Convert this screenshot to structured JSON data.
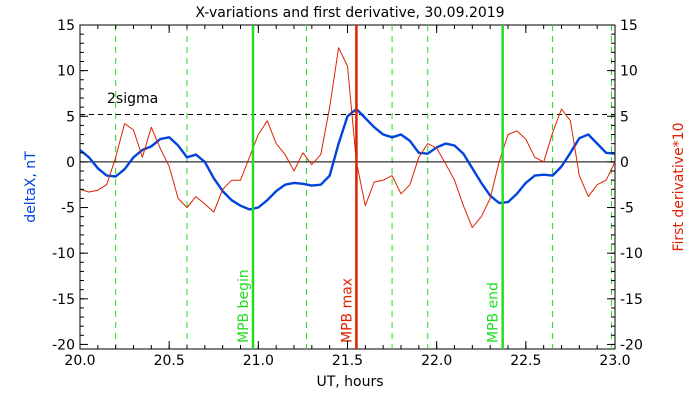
{
  "chart_data": {
    "type": "line",
    "title": "X-variations and first derivative, 30.09.2019",
    "xlabel": "UT, hours",
    "ylabel_left": "deltaX, nT",
    "ylabel_right": "First derivative*10",
    "xlim": [
      20.0,
      23.0
    ],
    "ylim": [
      -20.5,
      15
    ],
    "x_ticks": [
      "20.0",
      "20.5",
      "21.0",
      "21.5",
      "22.0",
      "22.5",
      "23.0"
    ],
    "x_tick_values": [
      20.0,
      20.5,
      21.0,
      21.5,
      22.0,
      22.5,
      23.0
    ],
    "y_ticks": [
      "15",
      "10",
      "5",
      "0",
      "-5",
      "-10",
      "-15",
      "-20"
    ],
    "y_tick_values": [
      15,
      10,
      5,
      0,
      -5,
      -10,
      -15,
      -20
    ],
    "grid": false,
    "sigma_label": "2sigma",
    "sigma_value": 5.2,
    "zero_line": 0,
    "colors": {
      "deltaX": "#0044dd",
      "derivative": "#dd2200",
      "green_lines": "#22dd22",
      "mpb_max": "#dd2200"
    },
    "vertical_dashed_x": [
      20.2,
      20.6,
      21.27,
      21.75,
      21.95,
      22.65,
      22.98
    ],
    "markers": [
      {
        "x": 20.97,
        "label": "MPB begin",
        "color": "#22dd22"
      },
      {
        "x": 21.55,
        "label": "MPB max",
        "color": "#dd2200"
      },
      {
        "x": 22.37,
        "label": "MPB end",
        "color": "#22dd22"
      }
    ],
    "series": [
      {
        "name": "deltaX, nT",
        "x": [
          20.0,
          20.05,
          20.1,
          20.15,
          20.2,
          20.25,
          20.3,
          20.35,
          20.4,
          20.45,
          20.5,
          20.55,
          20.6,
          20.65,
          20.7,
          20.75,
          20.8,
          20.85,
          20.9,
          20.95,
          21.0,
          21.05,
          21.1,
          21.15,
          21.2,
          21.25,
          21.3,
          21.35,
          21.4,
          21.45,
          21.5,
          21.55,
          21.6,
          21.65,
          21.7,
          21.75,
          21.8,
          21.85,
          21.9,
          21.95,
          22.0,
          22.05,
          22.1,
          22.15,
          22.2,
          22.25,
          22.3,
          22.35,
          22.4,
          22.45,
          22.5,
          22.55,
          22.6,
          22.65,
          22.7,
          22.75,
          22.8,
          22.85,
          22.9,
          22.95,
          23.0
        ],
        "values": [
          1.3,
          0.5,
          -0.7,
          -1.5,
          -1.6,
          -0.8,
          0.5,
          1.3,
          1.7,
          2.5,
          2.7,
          1.8,
          0.5,
          0.8,
          0.0,
          -1.8,
          -3.2,
          -4.2,
          -4.8,
          -5.2,
          -5.0,
          -4.2,
          -3.2,
          -2.5,
          -2.3,
          -2.4,
          -2.6,
          -2.5,
          -1.5,
          2.0,
          5.0,
          5.8,
          4.8,
          3.8,
          3.0,
          2.7,
          3.0,
          2.3,
          1.0,
          0.9,
          1.6,
          2.0,
          1.8,
          0.9,
          -0.7,
          -2.3,
          -3.7,
          -4.5,
          -4.4,
          -3.5,
          -2.3,
          -1.5,
          -1.4,
          -1.5,
          -0.5,
          1.0,
          2.6,
          3.0,
          2.0,
          1.0,
          0.9
        ]
      },
      {
        "name": "First derivative*10",
        "x": [
          20.0,
          20.05,
          20.1,
          20.15,
          20.2,
          20.25,
          20.3,
          20.35,
          20.4,
          20.45,
          20.5,
          20.55,
          20.6,
          20.65,
          20.7,
          20.75,
          20.8,
          20.85,
          20.9,
          20.95,
          21.0,
          21.05,
          21.1,
          21.15,
          21.2,
          21.25,
          21.3,
          21.35,
          21.4,
          21.45,
          21.5,
          21.55,
          21.6,
          21.65,
          21.7,
          21.75,
          21.8,
          21.85,
          21.9,
          21.95,
          22.0,
          22.05,
          22.1,
          22.15,
          22.2,
          22.25,
          22.3,
          22.35,
          22.4,
          22.45,
          22.5,
          22.55,
          22.6,
          22.65,
          22.7,
          22.75,
          22.8,
          22.85,
          22.9,
          22.95,
          23.0
        ],
        "values": [
          -3.0,
          -3.3,
          -3.1,
          -2.5,
          0.5,
          4.2,
          3.5,
          0.5,
          3.8,
          1.5,
          -0.5,
          -4.0,
          -5.0,
          -3.8,
          -4.6,
          -5.5,
          -3.0,
          -2.0,
          -2.0,
          0.5,
          3.0,
          4.5,
          2.0,
          0.8,
          -1.0,
          1.0,
          -0.3,
          0.8,
          6.0,
          12.5,
          10.5,
          0.0,
          -4.8,
          -2.2,
          -2.0,
          -1.5,
          -3.5,
          -2.5,
          0.5,
          2.0,
          1.5,
          -0.2,
          -2.0,
          -4.8,
          -7.2,
          -6.0,
          -4.0,
          0.0,
          3.0,
          3.4,
          2.5,
          0.5,
          0.0,
          3.2,
          5.8,
          4.5,
          -1.5,
          -3.8,
          -2.5,
          -2.0,
          0.0
        ]
      }
    ]
  }
}
